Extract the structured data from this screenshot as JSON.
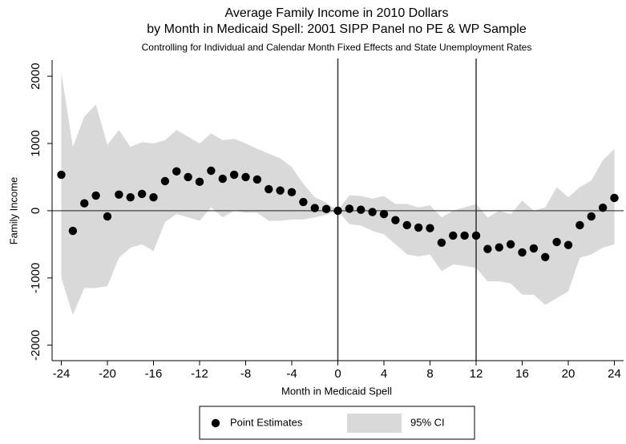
{
  "chart_data": {
    "type": "scatter",
    "title": "Average Family Income in 2010 Dollars",
    "title_line2": "by Month in Medicaid Spell: 2001 SIPP Panel no PE & WP Sample",
    "subtitle": "Controlling for Individual and Calendar Month Fixed Effects and State Unemployment Rates",
    "x_label": "Month in Medicaid Spell",
    "y_label": "Family Income",
    "x": [
      -24,
      -23,
      -22,
      -21,
      -20,
      -19,
      -18,
      -17,
      -16,
      -15,
      -14,
      -13,
      -12,
      -11,
      -10,
      -9,
      -8,
      -7,
      -6,
      -5,
      -4,
      -3,
      -2,
      -1,
      0,
      1,
      2,
      3,
      4,
      5,
      6,
      7,
      8,
      9,
      10,
      11,
      12,
      13,
      14,
      15,
      16,
      17,
      18,
      19,
      20,
      21,
      22,
      23,
      24
    ],
    "series": [
      {
        "name": "Point Estimates",
        "color": "#000000",
        "values": [
          535,
          -300,
          110,
          225,
          -85,
          240,
          200,
          250,
          200,
          440,
          585,
          500,
          430,
          595,
          475,
          535,
          500,
          465,
          320,
          300,
          275,
          130,
          40,
          25,
          0,
          30,
          15,
          -20,
          -50,
          -140,
          -215,
          -250,
          -260,
          -475,
          -370,
          -370,
          -370,
          -570,
          -545,
          -500,
          -620,
          -560,
          -690,
          -465,
          -510,
          -215,
          -85,
          45,
          190
        ]
      }
    ],
    "band": {
      "name": "95% CI",
      "color": "#d9d9d9",
      "upper": [
        2060,
        950,
        1400,
        1580,
        980,
        1200,
        950,
        1020,
        1000,
        1050,
        1200,
        1100,
        1000,
        1150,
        1050,
        1070,
        1000,
        920,
        850,
        780,
        650,
        400,
        200,
        120,
        0,
        230,
        220,
        180,
        220,
        100,
        100,
        50,
        80,
        -100,
        0,
        50,
        100,
        -100,
        0,
        -50,
        150,
        0,
        50,
        350,
        200,
        350,
        450,
        750,
        920
      ],
      "lower": [
        -1000,
        -1550,
        -1150,
        -1150,
        -1120,
        -700,
        -550,
        -500,
        -600,
        -170,
        -50,
        -100,
        -150,
        50,
        -100,
        0,
        -30,
        -30,
        -150,
        -150,
        -130,
        -130,
        -100,
        -60,
        0,
        -200,
        -220,
        -300,
        -350,
        -500,
        -650,
        -680,
        -650,
        -900,
        -800,
        -820,
        -850,
        -1050,
        -1050,
        -1080,
        -1250,
        -1250,
        -1400,
        -1300,
        -1200,
        -700,
        -650,
        -550,
        -500
      ]
    },
    "vlines": [
      0,
      12
    ],
    "hlines": [
      0
    ],
    "xlim": [
      -24.8,
      24.8
    ],
    "ylim": [
      -2230,
      2240
    ],
    "xticks": [
      -24,
      -20,
      -16,
      -12,
      -8,
      -4,
      0,
      4,
      8,
      12,
      16,
      20,
      24
    ],
    "yticks": [
      -2000,
      -1000,
      0,
      1000,
      2000
    ],
    "legend": "bottom"
  }
}
